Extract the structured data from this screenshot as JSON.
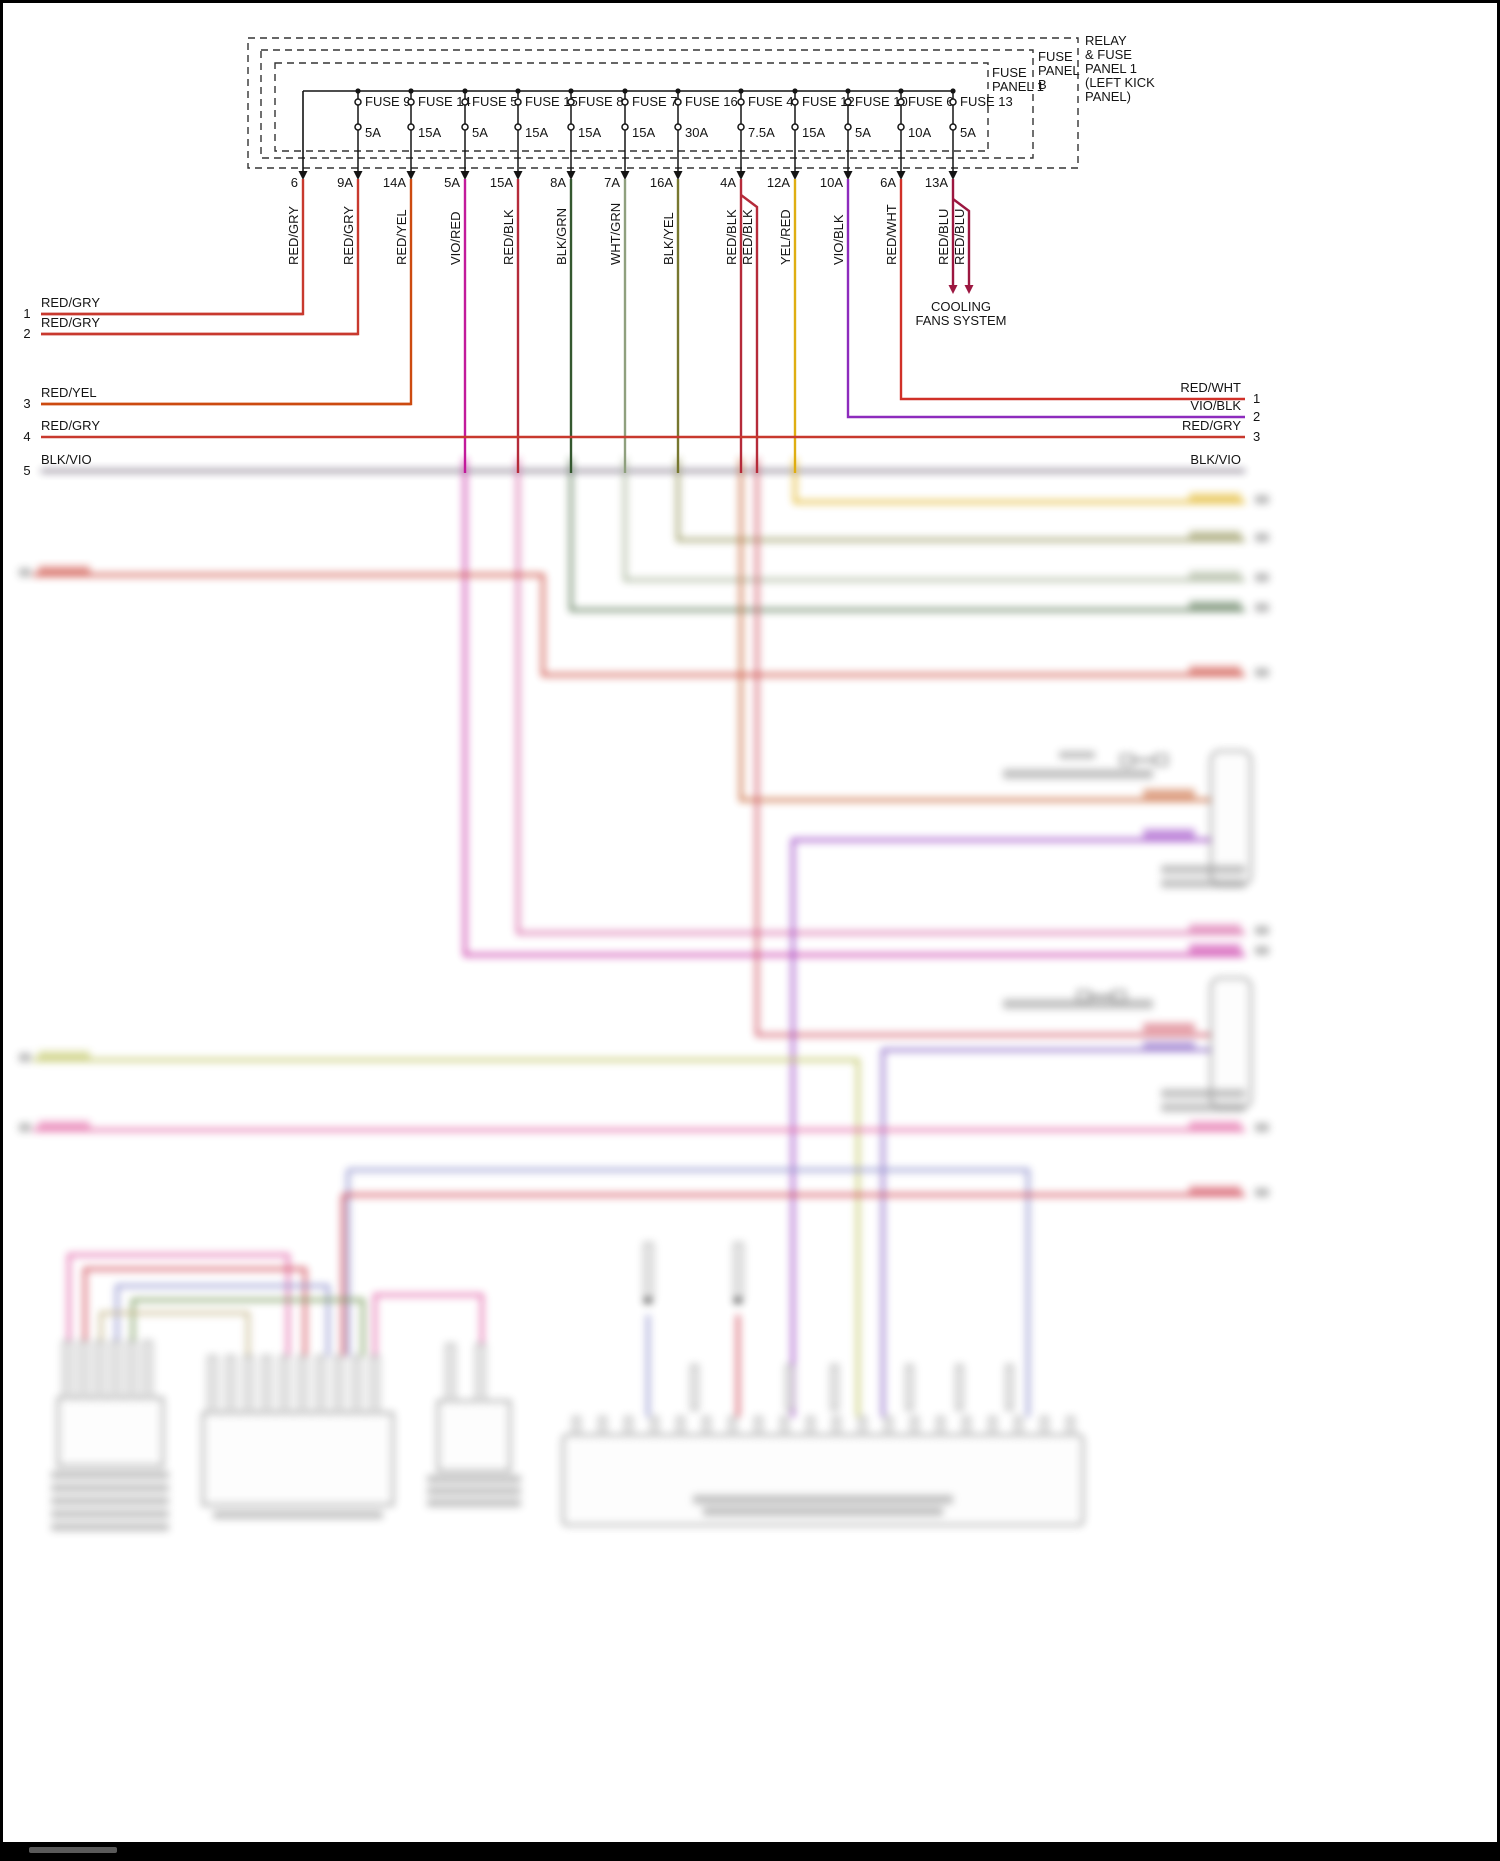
{
  "panel_labels": {
    "relay": [
      "RELAY",
      "& FUSE",
      "PANEL 1",
      "(LEFT KICK",
      "PANEL)"
    ],
    "fuse_panel_b": [
      "FUSE",
      "PANEL",
      "B"
    ],
    "fuse_panel_1": [
      "FUSE",
      "PANEL 1"
    ]
  },
  "fuses": [
    {
      "name": "FUSE 9",
      "amp": "5A"
    },
    {
      "name": "FUSE 14",
      "amp": "15A"
    },
    {
      "name": "FUSE 5",
      "amp": "5A"
    },
    {
      "name": "FUSE 15",
      "amp": "15A"
    },
    {
      "name": "FUSE 8",
      "amp": "15A"
    },
    {
      "name": "FUSE 7",
      "amp": "15A"
    },
    {
      "name": "FUSE 16",
      "amp": "30A"
    },
    {
      "name": "FUSE 4",
      "amp": "7.5A"
    },
    {
      "name": "FUSE 12",
      "amp": "15A"
    },
    {
      "name": "FUSE 10",
      "amp": "5A"
    },
    {
      "name": "FUSE 6",
      "amp": "10A"
    },
    {
      "name": "FUSE 13",
      "amp": "5A"
    }
  ],
  "wires": [
    {
      "pin": "6",
      "label": "RED/GRY",
      "hex": "#c8392e"
    },
    {
      "pin": "9A",
      "label": "RED/GRY",
      "hex": "#c8392e"
    },
    {
      "pin": "14A",
      "label": "RED/YEL",
      "hex": "#cc4a10"
    },
    {
      "pin": "5A",
      "label": "VIO/RED",
      "hex": "#c21a9b"
    },
    {
      "pin": "15A",
      "label": "RED/BLK",
      "hex": "#b52b3a"
    },
    {
      "pin": "8A",
      "label": "BLK/GRN",
      "hex": "#34582f"
    },
    {
      "pin": "7A",
      "label": "WHT/GRN",
      "hex": "#8fa07e"
    },
    {
      "pin": "16A",
      "label": "BLK/YEL",
      "hex": "#77772f"
    },
    {
      "pin": "4A",
      "label": "RED/BLK",
      "label2": "RED/BLK",
      "hex": "#b52b3a"
    },
    {
      "pin": "12A",
      "label": "YEL/RED",
      "hex": "#dfae12"
    },
    {
      "pin": "10A",
      "label": "VIO/BLK",
      "hex": "#8d2bbd"
    },
    {
      "pin": "6A",
      "label": "RED/WHT",
      "hex": "#d03028"
    },
    {
      "pin": "13A",
      "label": "RED/BLU",
      "label2": "RED/BLU",
      "hex": "#9c1740"
    }
  ],
  "left_rail": [
    {
      "n": "1",
      "label": "RED/GRY",
      "hex": "#c8392e"
    },
    {
      "n": "2",
      "label": "RED/GRY",
      "hex": "#c8392e"
    },
    {
      "n": "3",
      "label": "RED/YEL",
      "hex": "#cc4a10"
    },
    {
      "n": "4",
      "label": "RED/GRY",
      "hex": "#c8392e"
    },
    {
      "n": "5",
      "label": "BLK/VIO",
      "hex": "#463a55"
    }
  ],
  "right_rail": [
    {
      "n": "1",
      "label": "RED/WHT",
      "hex": "#d03028"
    },
    {
      "n": "2",
      "label": "VIO/BLK",
      "hex": "#8d2bbd"
    },
    {
      "n": "3",
      "label": "RED/GRY",
      "hex": "#c8392e"
    },
    {
      "n": "",
      "label": "BLK/VIO",
      "hex": "#463a55"
    }
  ],
  "cooling_fans": {
    "line1": "COOLING",
    "line2": "FANS SYSTEM"
  }
}
